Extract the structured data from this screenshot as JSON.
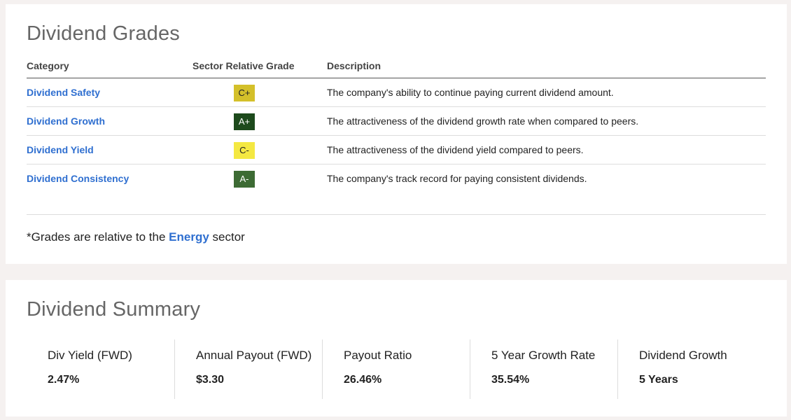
{
  "grades": {
    "title": "Dividend Grades",
    "headers": {
      "category": "Category",
      "grade": "Sector Relative Grade",
      "description": "Description"
    },
    "rows": [
      {
        "category": "Dividend Safety",
        "grade": "C+",
        "grade_bg": "#d4c02a",
        "grade_fg": "#222222",
        "description": "The company's ability to continue paying current dividend amount."
      },
      {
        "category": "Dividend Growth",
        "grade": "A+",
        "grade_bg": "#1d4a1c",
        "grade_fg": "#ffffff",
        "description": "The attractiveness of the dividend growth rate when compared to peers."
      },
      {
        "category": "Dividend Yield",
        "grade": "C-",
        "grade_bg": "#f4e842",
        "grade_fg": "#222222",
        "description": "The attractiveness of the dividend yield compared to peers."
      },
      {
        "category": "Dividend Consistency",
        "grade": "A-",
        "grade_bg": "#3d6b34",
        "grade_fg": "#ffffff",
        "description": "The company's track record for paying consistent dividends."
      }
    ],
    "footnote": {
      "prefix": "*Grades are relative to the ",
      "link": "Energy",
      "suffix": " sector"
    }
  },
  "summary": {
    "title": "Dividend Summary",
    "metrics": [
      {
        "label": "Div Yield (FWD)",
        "value": "2.47%"
      },
      {
        "label": "Annual Payout (FWD)",
        "value": "$3.30"
      },
      {
        "label": "Payout Ratio",
        "value": "26.46%"
      },
      {
        "label": "5 Year Growth Rate",
        "value": "35.54%"
      },
      {
        "label": "Dividend Growth",
        "value": "5 Years"
      }
    ]
  },
  "colors": {
    "link": "#2f6fd0",
    "background": "#f5f1f0"
  }
}
